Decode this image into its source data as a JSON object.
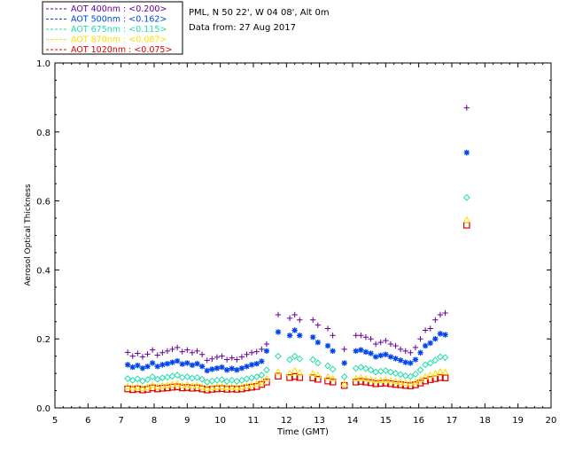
{
  "chart_data": {
    "type": "scatter",
    "station": "PML, N 50 22', W 04 08', Alt 0m",
    "date_line": "Data from: 27 Aug 2017",
    "xlabel": "Time (GMT)",
    "ylabel": "Aerosol Optical Thickness",
    "xlim": [
      5,
      20
    ],
    "ylim": [
      0,
      1.0
    ],
    "x_ticks": [
      "5",
      "6",
      "7",
      "8",
      "9",
      "10",
      "11",
      "12",
      "13",
      "14",
      "15",
      "16",
      "17",
      "18",
      "19",
      "20"
    ],
    "y_ticks": [
      "0.0",
      "0.2",
      "0.4",
      "0.6",
      "0.8",
      "1.0"
    ],
    "legend_position": "top-left",
    "x": [
      7.2,
      7.35,
      7.5,
      7.65,
      7.8,
      7.95,
      8.1,
      8.25,
      8.4,
      8.55,
      8.7,
      8.85,
      9.0,
      9.15,
      9.3,
      9.45,
      9.6,
      9.75,
      9.9,
      10.05,
      10.2,
      10.35,
      10.5,
      10.65,
      10.8,
      10.95,
      11.1,
      11.25,
      11.4,
      11.75,
      12.1,
      12.25,
      12.4,
      12.8,
      12.95,
      13.25,
      13.4,
      13.75,
      14.1,
      14.25,
      14.4,
      14.55,
      14.7,
      14.85,
      15.0,
      15.15,
      15.3,
      15.45,
      15.6,
      15.75,
      15.9,
      16.05,
      16.2,
      16.35,
      16.5,
      16.65,
      16.8,
      17.45
    ],
    "series": [
      {
        "name": "AOT  400nm : <0.200>",
        "color": "#660099",
        "marker": "plus",
        "values": [
          0.161,
          0.15,
          0.158,
          0.148,
          0.156,
          0.168,
          0.153,
          0.16,
          0.165,
          0.17,
          0.175,
          0.163,
          0.168,
          0.16,
          0.165,
          0.155,
          0.138,
          0.142,
          0.147,
          0.15,
          0.14,
          0.145,
          0.14,
          0.148,
          0.155,
          0.16,
          0.163,
          0.17,
          0.185,
          0.27,
          0.26,
          0.27,
          0.255,
          0.255,
          0.24,
          0.23,
          0.21,
          0.17,
          0.21,
          0.21,
          0.205,
          0.2,
          0.185,
          0.19,
          0.195,
          0.185,
          0.18,
          0.17,
          0.165,
          0.16,
          0.175,
          0.2,
          0.225,
          0.23,
          0.255,
          0.27,
          0.275,
          0.87
        ]
      },
      {
        "name": "AOT  500nm : <0.162>",
        "color": "#0044ee",
        "marker": "asterisk",
        "values": [
          0.125,
          0.118,
          0.123,
          0.115,
          0.12,
          0.13,
          0.12,
          0.125,
          0.128,
          0.132,
          0.136,
          0.127,
          0.13,
          0.124,
          0.128,
          0.12,
          0.108,
          0.112,
          0.115,
          0.118,
          0.11,
          0.114,
          0.11,
          0.115,
          0.12,
          0.125,
          0.128,
          0.135,
          0.165,
          0.22,
          0.21,
          0.225,
          0.21,
          0.205,
          0.19,
          0.18,
          0.165,
          0.13,
          0.165,
          0.168,
          0.162,
          0.158,
          0.148,
          0.152,
          0.155,
          0.148,
          0.143,
          0.138,
          0.132,
          0.13,
          0.14,
          0.16,
          0.18,
          0.188,
          0.2,
          0.215,
          0.212,
          0.74
        ]
      },
      {
        "name": "AOT  675nm : <0.115>",
        "color": "#22ddaa",
        "marker": "diamond",
        "values": [
          0.085,
          0.08,
          0.084,
          0.078,
          0.082,
          0.09,
          0.083,
          0.087,
          0.089,
          0.092,
          0.095,
          0.088,
          0.09,
          0.086,
          0.088,
          0.083,
          0.075,
          0.078,
          0.08,
          0.082,
          0.077,
          0.08,
          0.077,
          0.08,
          0.084,
          0.087,
          0.09,
          0.095,
          0.11,
          0.15,
          0.14,
          0.15,
          0.142,
          0.14,
          0.13,
          0.122,
          0.112,
          0.09,
          0.115,
          0.118,
          0.114,
          0.11,
          0.104,
          0.106,
          0.108,
          0.104,
          0.1,
          0.097,
          0.093,
          0.091,
          0.098,
          0.11,
          0.125,
          0.13,
          0.138,
          0.148,
          0.146,
          0.61
        ]
      },
      {
        "name": "AOT  870nm : <0.087>",
        "color": "#ffdd00",
        "marker": "triangle",
        "values": [
          0.062,
          0.058,
          0.061,
          0.057,
          0.06,
          0.066,
          0.061,
          0.064,
          0.066,
          0.068,
          0.07,
          0.065,
          0.067,
          0.063,
          0.065,
          0.061,
          0.057,
          0.059,
          0.061,
          0.062,
          0.059,
          0.061,
          0.059,
          0.061,
          0.064,
          0.066,
          0.069,
          0.075,
          0.085,
          0.105,
          0.1,
          0.108,
          0.102,
          0.1,
          0.095,
          0.09,
          0.085,
          0.07,
          0.085,
          0.088,
          0.085,
          0.082,
          0.079,
          0.08,
          0.082,
          0.079,
          0.077,
          0.075,
          0.072,
          0.071,
          0.075,
          0.082,
          0.09,
          0.095,
          0.1,
          0.105,
          0.104,
          0.545
        ]
      },
      {
        "name": "AOT 1020nm : <0.075>",
        "color": "#dd0000",
        "marker": "square",
        "values": [
          0.055,
          0.053,
          0.055,
          0.052,
          0.054,
          0.058,
          0.055,
          0.057,
          0.058,
          0.06,
          0.061,
          0.058,
          0.059,
          0.057,
          0.058,
          0.055,
          0.052,
          0.054,
          0.055,
          0.056,
          0.054,
          0.055,
          0.054,
          0.055,
          0.058,
          0.06,
          0.062,
          0.068,
          0.075,
          0.092,
          0.088,
          0.091,
          0.088,
          0.087,
          0.083,
          0.078,
          0.075,
          0.065,
          0.075,
          0.077,
          0.075,
          0.073,
          0.07,
          0.071,
          0.072,
          0.07,
          0.068,
          0.067,
          0.065,
          0.064,
          0.067,
          0.072,
          0.078,
          0.082,
          0.085,
          0.088,
          0.087,
          0.53
        ]
      }
    ]
  }
}
